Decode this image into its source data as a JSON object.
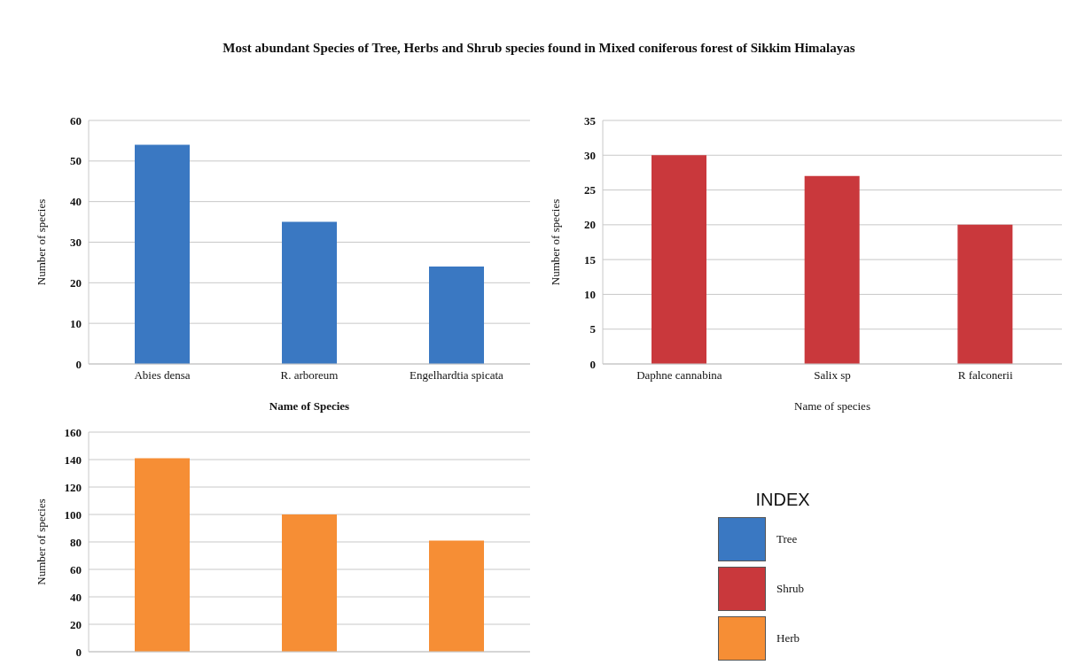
{
  "chart_data": [
    {
      "type": "bar",
      "title": "Most abundant Species of  Tree, Herbs and Shrub species found in Mixed coniferous forest  of Sikkim Himalayas",
      "categories": [
        "Abies densa",
        "R. arboreum",
        "Engelhardtia spicata"
      ],
      "series": [
        {
          "name": "Tree",
          "color": "#3a78c2",
          "values": [
            54,
            35,
            24
          ]
        }
      ],
      "xlabel": "Name of Species",
      "ylabel": "Number of species",
      "ylim": [
        0,
        60
      ],
      "yticks": [
        0,
        10,
        20,
        30,
        40,
        50,
        60
      ],
      "grid": "y"
    },
    {
      "type": "bar",
      "categories": [
        "Daphne cannabina",
        "Salix sp",
        "R falconerii"
      ],
      "series": [
        {
          "name": "Shrub",
          "color": "#c9383c",
          "values": [
            30,
            27,
            20
          ]
        }
      ],
      "xlabel": "Name of species",
      "ylabel": "Number of species",
      "ylim": [
        0,
        35
      ],
      "yticks": [
        0,
        5,
        10,
        15,
        20,
        25,
        30,
        35
      ],
      "grid": "y"
    },
    {
      "type": "bar",
      "categories": [
        null,
        null,
        null
      ],
      "series": [
        {
          "name": "Herb",
          "color": "#f68e35",
          "values": [
            141,
            100,
            81
          ]
        }
      ],
      "ylabel": "Number of species",
      "ylim": [
        0,
        160
      ],
      "yticks": [
        0,
        20,
        40,
        60,
        80,
        100,
        120,
        140,
        160
      ],
      "grid": "y",
      "legend": "right",
      "legend_title": "INDEX"
    }
  ]
}
